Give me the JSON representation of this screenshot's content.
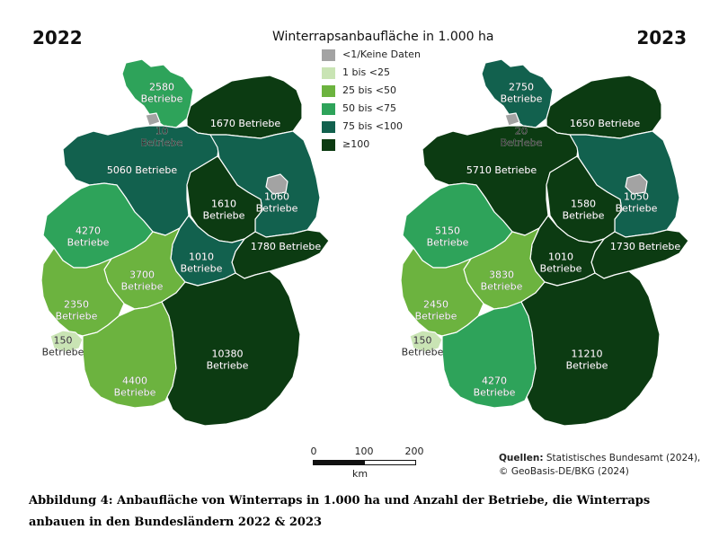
{
  "map": {
    "title": "Winterrapsanbaufläche in 1.000 ha",
    "legend": [
      {
        "label": "<1/Keine Daten",
        "color": "#a3a3a3"
      },
      {
        "label": "1 bis <25",
        "color": "#c9e4b4"
      },
      {
        "label": "25 bis <50",
        "color": "#6cb33f"
      },
      {
        "label": "50 bis <75",
        "color": "#2ea35a"
      },
      {
        "label": "75 bis <100",
        "color": "#12614e"
      },
      {
        "label": "≥100",
        "color": "#0c3b12"
      }
    ],
    "scale": {
      "ticks": [
        "0",
        "100",
        "200"
      ],
      "unit": "km"
    },
    "sources_label": "Quellen:",
    "sources_line1": "Statistisches Bundesamt (2024),",
    "sources_line2": "© GeoBasis-DE/BKG (2024)",
    "maps": [
      {
        "year": "2022",
        "regions": [
          {
            "id": "SH",
            "class": 3,
            "label": [
              "2580",
              "Betriebe"
            ]
          },
          {
            "id": "HH",
            "class": 0,
            "label": []
          },
          {
            "id": "MV",
            "class": 5,
            "label": [
              "1670 Betriebe"
            ]
          },
          {
            "id": "HB",
            "class": 0,
            "label": [
              "10",
              "Betriebe"
            ]
          },
          {
            "id": "NI",
            "class": 4,
            "label": [
              "5060 Betriebe"
            ]
          },
          {
            "id": "BB",
            "class": 4,
            "label": [
              "1060",
              "Betriebe"
            ]
          },
          {
            "id": "BE",
            "class": 0,
            "label": []
          },
          {
            "id": "ST",
            "class": 5,
            "label": [
              "1610",
              "Betriebe"
            ]
          },
          {
            "id": "NW",
            "class": 3,
            "label": [
              "4270",
              "Betriebe"
            ]
          },
          {
            "id": "SN",
            "class": 5,
            "label": [
              "1780 Betriebe"
            ]
          },
          {
            "id": "TH",
            "class": 4,
            "label": [
              "1010",
              "Betriebe"
            ]
          },
          {
            "id": "HE",
            "class": 2,
            "label": [
              "3700",
              "Betriebe"
            ]
          },
          {
            "id": "RP",
            "class": 2,
            "label": [
              "2350",
              "Betriebe"
            ]
          },
          {
            "id": "SL",
            "class": 1,
            "label": [
              "150",
              "Betriebe"
            ]
          },
          {
            "id": "BW",
            "class": 2,
            "label": [
              "4400",
              "Betriebe"
            ]
          },
          {
            "id": "BY",
            "class": 5,
            "label": [
              "10380",
              "Betriebe"
            ]
          }
        ]
      },
      {
        "year": "2023",
        "regions": [
          {
            "id": "SH",
            "class": 4,
            "label": [
              "2750",
              "Betriebe"
            ]
          },
          {
            "id": "HH",
            "class": 0,
            "label": []
          },
          {
            "id": "MV",
            "class": 5,
            "label": [
              "1650 Betriebe"
            ]
          },
          {
            "id": "HB",
            "class": 0,
            "label": [
              "20",
              "Betriebe"
            ]
          },
          {
            "id": "NI",
            "class": 5,
            "label": [
              "5710 Betriebe"
            ]
          },
          {
            "id": "BB",
            "class": 4,
            "label": [
              "1050",
              "Betriebe"
            ]
          },
          {
            "id": "BE",
            "class": 0,
            "label": []
          },
          {
            "id": "ST",
            "class": 5,
            "label": [
              "1580",
              "Betriebe"
            ]
          },
          {
            "id": "NW",
            "class": 3,
            "label": [
              "5150",
              "Betriebe"
            ]
          },
          {
            "id": "SN",
            "class": 5,
            "label": [
              "1730 Betriebe"
            ]
          },
          {
            "id": "TH",
            "class": 5,
            "label": [
              "1010",
              "Betriebe"
            ]
          },
          {
            "id": "HE",
            "class": 2,
            "label": [
              "3830",
              "Betriebe"
            ]
          },
          {
            "id": "RP",
            "class": 2,
            "label": [
              "2450",
              "Betriebe"
            ]
          },
          {
            "id": "SL",
            "class": 1,
            "label": [
              "150",
              "Betriebe"
            ]
          },
          {
            "id": "BW",
            "class": 3,
            "label": [
              "4270",
              "Betriebe"
            ]
          },
          {
            "id": "BY",
            "class": 5,
            "label": [
              "11210",
              "Betriebe"
            ]
          }
        ]
      }
    ]
  },
  "caption": "Abbildung 4: Anbaufläche von Winterraps in 1.000 ha und Anzahl der Betriebe, die Winterraps anbauen in den Bundesländern 2022 & 2023"
}
